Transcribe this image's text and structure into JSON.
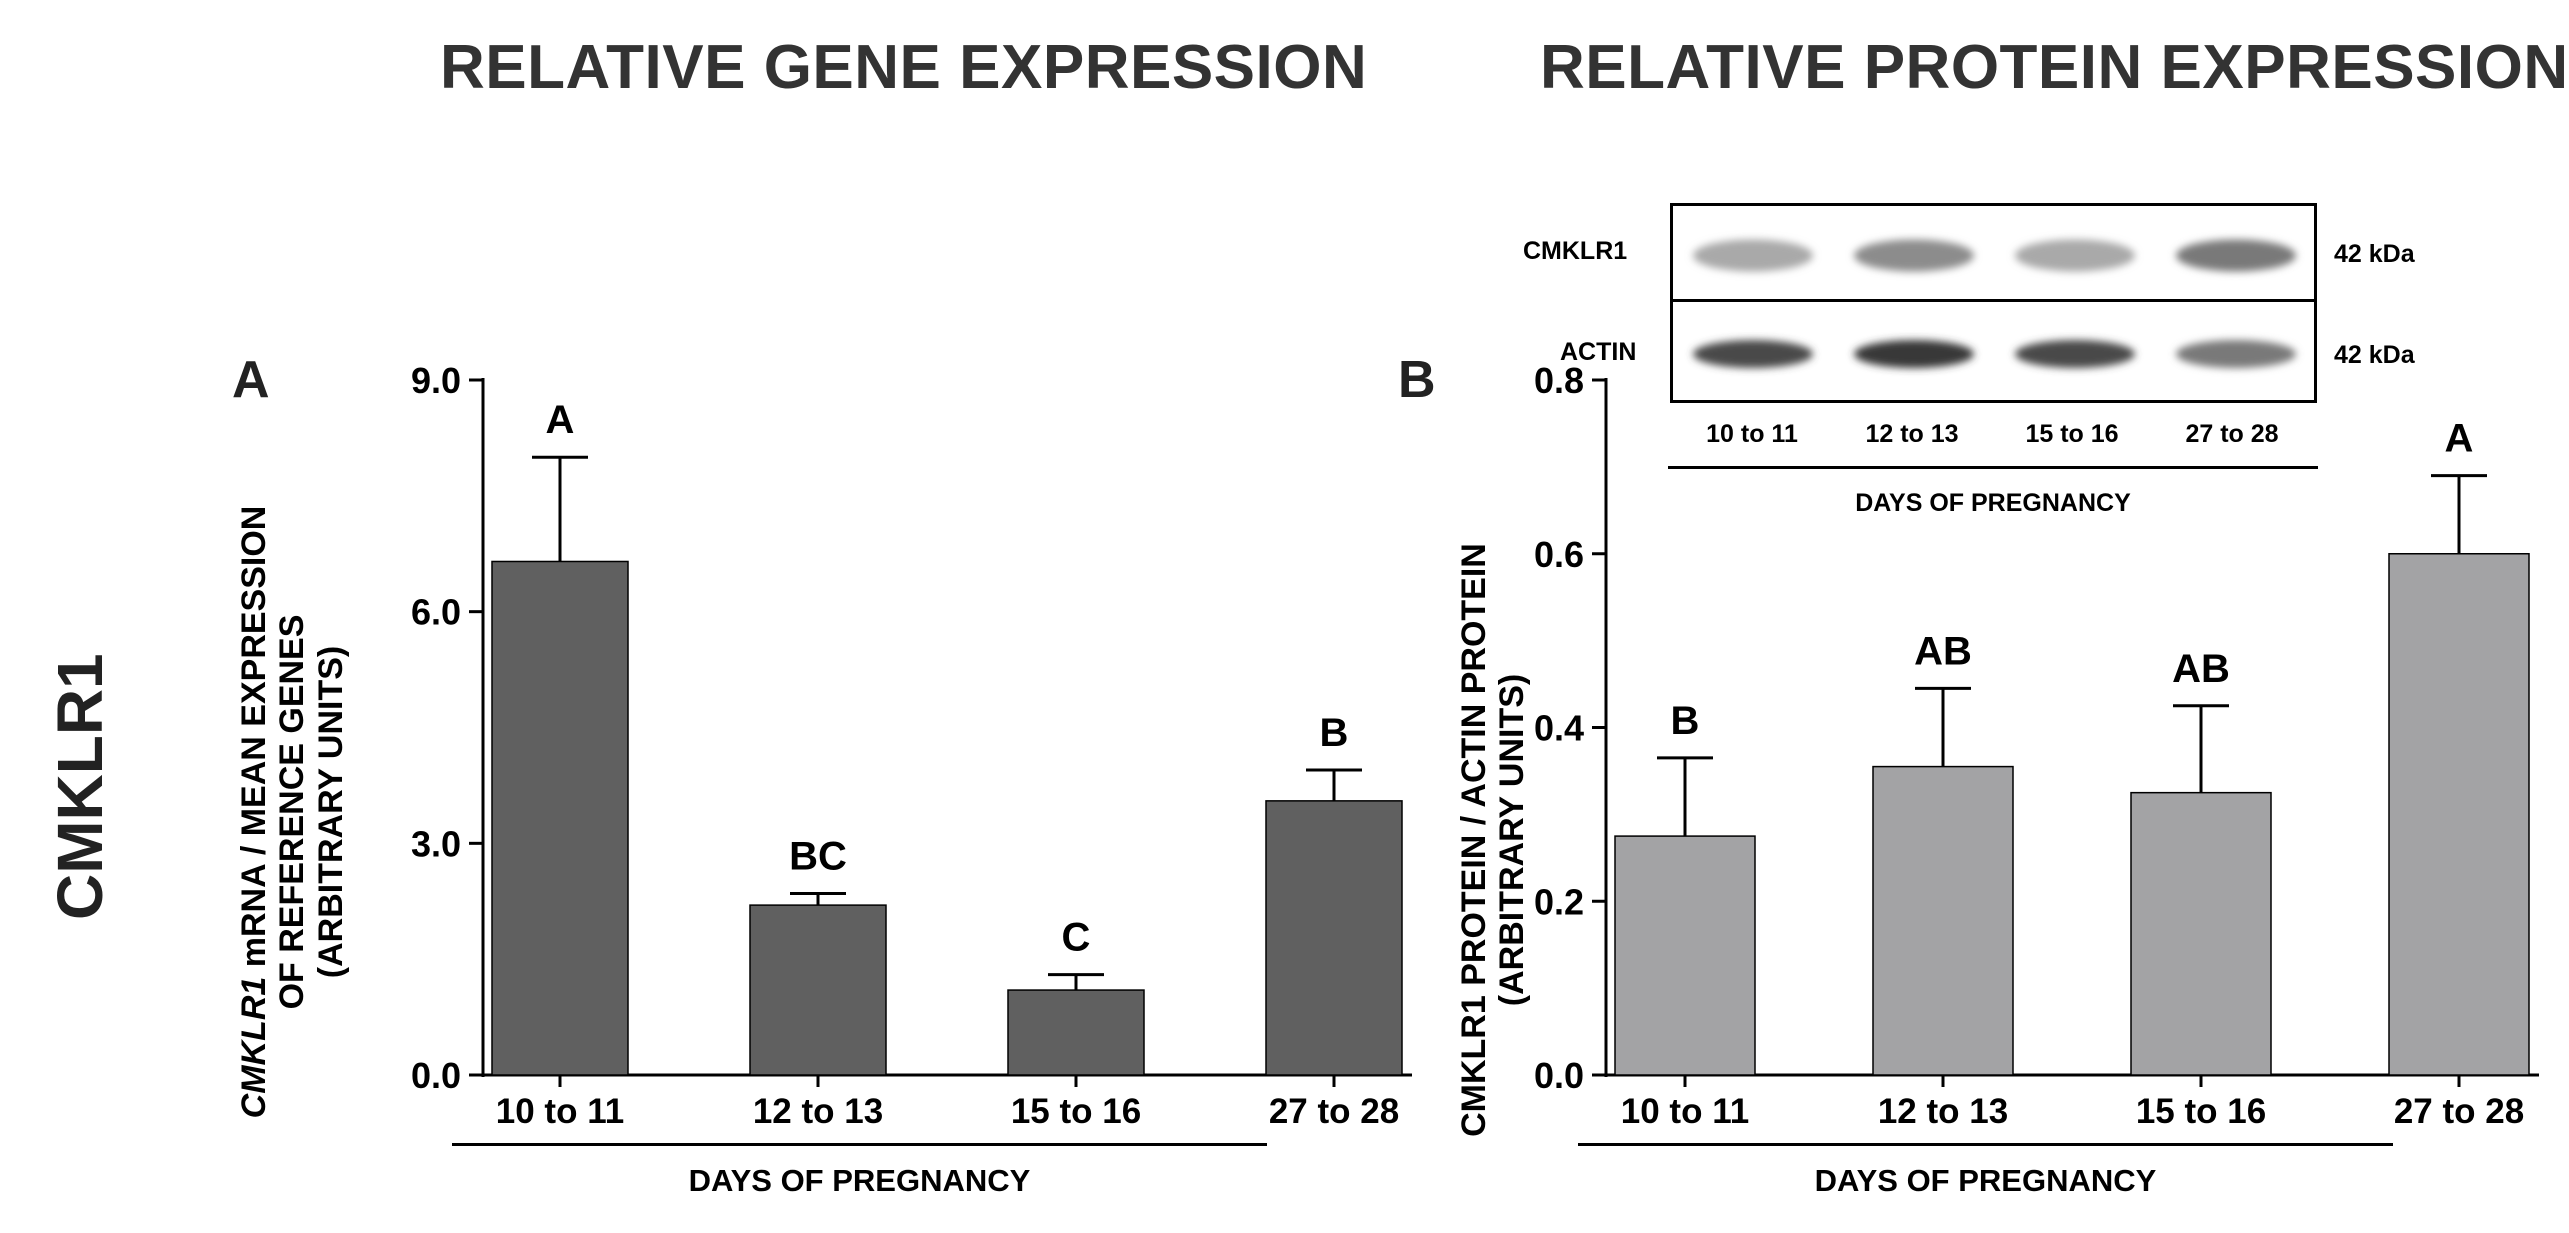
{
  "titles": {
    "left": "RELATIVE GENE EXPRESSION",
    "right": "RELATIVE PROTEIN EXPRESSION"
  },
  "row_label": "CMKLR1",
  "panel_a": {
    "label": "A",
    "ylabel_italic": "CMKLR1",
    "ylabel_line1_rest": " mRNA / MEAN EXPRESSION",
    "ylabel_line2": "OF REFERENCE GENES",
    "ylabel_line3": "(ARBITRARY UNITS)",
    "xlabel": "DAYS OF PREGNANCY"
  },
  "panel_b": {
    "label": "B",
    "ylabel_line1": "CMKLR1 PROTEIN / ACTIN PROTEIN",
    "ylabel_line2": "(ARBITRARY UNITS)",
    "xlabel": "DAYS OF PREGNANCY"
  },
  "western_blot": {
    "rows": [
      {
        "name": "CMKLR1",
        "size": "42 kDa",
        "intensity": [
          0.35,
          0.5,
          0.35,
          0.6
        ]
      },
      {
        "name": "ACTIN",
        "size": "42 kDa",
        "intensity": [
          0.85,
          0.95,
          0.85,
          0.6
        ]
      }
    ],
    "lanes": [
      "10 to 11",
      "12 to 13",
      "15 to 16",
      "27 to 28"
    ],
    "xlabel": "DAYS OF PREGNANCY"
  },
  "colors": {
    "bar_a": "#606060",
    "bar_b": "#a3a3a5"
  },
  "chart_data": [
    {
      "type": "bar",
      "panel": "A",
      "title": "RELATIVE GENE EXPRESSION",
      "categories": [
        "10 to 11",
        "12 to 13",
        "15 to 16",
        "27 to 28"
      ],
      "values": [
        6.65,
        2.2,
        1.1,
        3.55
      ],
      "errors": [
        1.35,
        0.15,
        0.2,
        0.4
      ],
      "significance": [
        "A",
        "BC",
        "C",
        "B"
      ],
      "yticks": [
        "0.0",
        "3.0",
        "6.0",
        "9.0"
      ],
      "ylim": [
        0,
        9
      ],
      "xlabel": "DAYS OF PREGNANCY",
      "ylabel": "CMKLR1 mRNA / MEAN EXPRESSION OF REFERENCE GENES (ARBITRARY UNITS)"
    },
    {
      "type": "bar",
      "panel": "B",
      "title": "RELATIVE PROTEIN EXPRESSION",
      "categories": [
        "10 to 11",
        "12 to 13",
        "15 to 16",
        "27 to 28"
      ],
      "values": [
        0.275,
        0.355,
        0.325,
        0.6
      ],
      "errors": [
        0.09,
        0.09,
        0.1,
        0.09
      ],
      "significance": [
        "B",
        "AB",
        "AB",
        "A"
      ],
      "yticks": [
        "0.0",
        "0.2",
        "0.4",
        "0.6",
        "0.8"
      ],
      "ylim": [
        0,
        0.8
      ],
      "xlabel": "DAYS OF PREGNANCY",
      "ylabel": "CMKLR1 PROTEIN / ACTIN PROTEIN (ARBITRARY UNITS)"
    }
  ]
}
